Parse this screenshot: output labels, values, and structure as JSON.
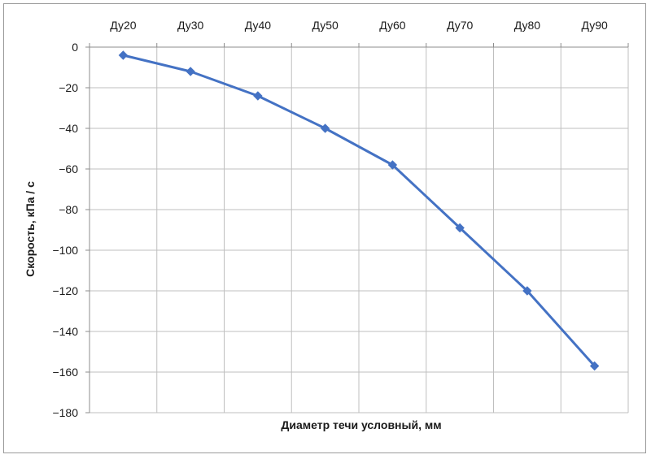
{
  "chart_data": {
    "type": "line",
    "title": "",
    "xlabel": "Диаметр течи условный, мм",
    "ylabel": "Скорость, кПа / с",
    "categories": [
      "Ду20",
      "Ду30",
      "Ду40",
      "Ду50",
      "Ду60",
      "Ду70",
      "Ду80",
      "Ду90"
    ],
    "series": [
      {
        "values": [
          -4,
          -12,
          -24,
          -40,
          -58,
          -89,
          -120,
          -157
        ]
      }
    ],
    "ylim": [
      -180,
      0
    ],
    "yticks": [
      0,
      -20,
      -40,
      -60,
      -80,
      -100,
      -120,
      -140,
      -160,
      -180
    ],
    "x_axis_position": "top",
    "grid": true,
    "legend": "none",
    "colors": {
      "series": "#4472c4",
      "grid": "#bfbfbf",
      "axis": "#8c8c8c"
    }
  }
}
